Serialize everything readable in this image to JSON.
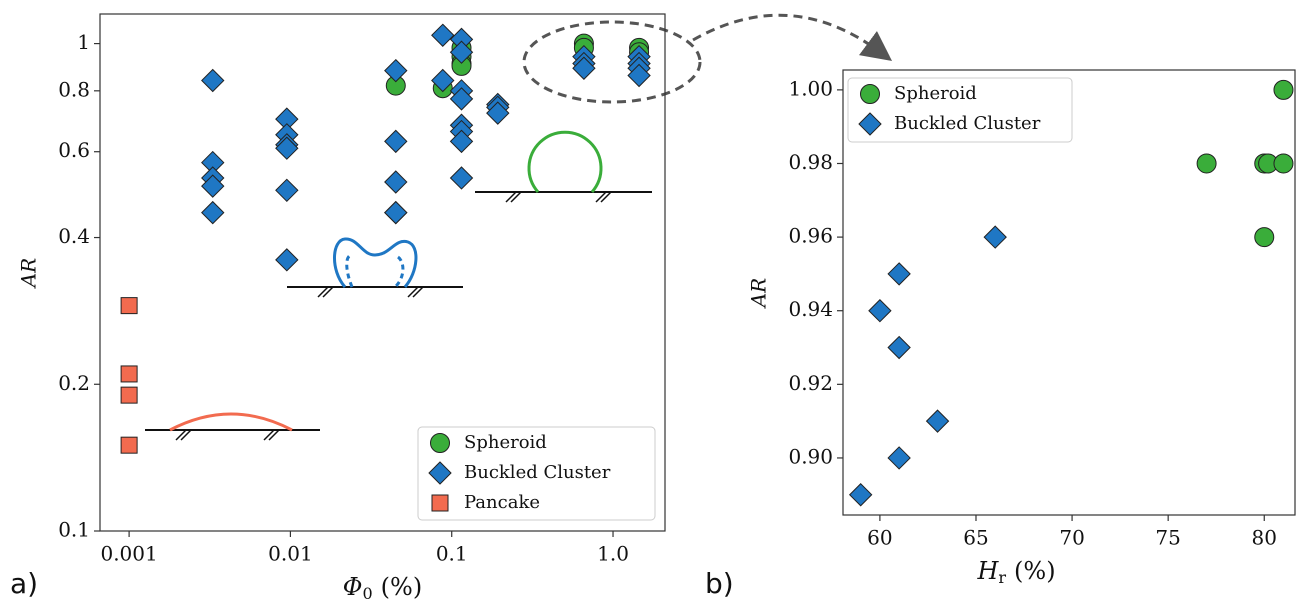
{
  "chart_data": [
    {
      "type": "scatter",
      "panel": "a)",
      "xscale": "log",
      "yscale": "log",
      "x_label": {
        "symbol": "Φ",
        "subscript": "0",
        "unit": "(%)"
      },
      "y_label": "AR",
      "xlim": [
        0.00066,
        2.1
      ],
      "ylim": [
        0.1,
        1.15
      ],
      "xticks": [
        0.001,
        0.01,
        0.1,
        {
          "value": 1,
          "label": "1.0"
        }
      ],
      "yticks": [
        0.1,
        0.2,
        0.4,
        0.6,
        0.8,
        1
      ],
      "legend": "lower right",
      "series": [
        {
          "name": "Spheroid",
          "color": "#3aad3a",
          "marker": "circle",
          "x": [
            0.045,
            0.088,
            0.115,
            0.115,
            0.115,
            0.115,
            0.66,
            0.66,
            1.45,
            1.45
          ],
          "values": [
            0.82,
            0.81,
            0.98,
            0.94,
            0.91,
            0.9,
            1.0,
            0.98,
            0.98,
            0.96
          ]
        },
        {
          "name": "Buckled Cluster",
          "color": "#1f77c4",
          "marker": "diamond",
          "x": [
            0.0033,
            0.0033,
            0.0033,
            0.0033,
            0.0033,
            0.0095,
            0.0095,
            0.0095,
            0.0095,
            0.0095,
            0.0095,
            0.045,
            0.045,
            0.045,
            0.045,
            0.045,
            0.088,
            0.088,
            0.115,
            0.115,
            0.115,
            0.115,
            0.115,
            0.115,
            0.115,
            0.115,
            0.193,
            0.193,
            0.193,
            0.66,
            0.66,
            0.66,
            1.45,
            1.45,
            1.45,
            1.45
          ],
          "values": [
            0.84,
            0.57,
            0.53,
            0.51,
            0.45,
            0.7,
            0.65,
            0.62,
            0.61,
            0.5,
            0.36,
            0.88,
            0.63,
            0.52,
            0.45,
            0.45,
            1.04,
            0.84,
            1.02,
            0.96,
            0.8,
            0.77,
            0.68,
            0.66,
            0.63,
            0.53,
            0.75,
            0.74,
            0.72,
            0.94,
            0.91,
            0.89,
            0.94,
            0.91,
            0.89,
            0.86
          ]
        },
        {
          "name": "Pancake",
          "color": "#f26b4f",
          "marker": "square",
          "x": [
            0.001,
            0.001,
            0.001,
            0.001
          ],
          "values": [
            0.29,
            0.21,
            0.19,
            0.15
          ]
        }
      ]
    },
    {
      "type": "scatter",
      "panel": "b)",
      "xscale": "linear",
      "yscale": "linear",
      "x_label": {
        "symbol": "H",
        "subscript": "r",
        "unit": "(%)"
      },
      "y_label": "AR",
      "xlim": [
        58.08,
        81.6
      ],
      "ylim": [
        0.8845,
        1.0054
      ],
      "xticks": [
        60,
        65,
        70,
        75,
        80
      ],
      "yticks": [
        {
          "value": 0.9,
          "label": "0.90"
        },
        {
          "value": 0.92,
          "label": "0.92"
        },
        {
          "value": 0.94,
          "label": "0.94"
        },
        {
          "value": 0.96,
          "label": "0.96"
        },
        {
          "value": 0.98,
          "label": "0.98"
        },
        {
          "value": 1.0,
          "label": "1.00"
        }
      ],
      "legend": "upper left",
      "series": [
        {
          "name": "Spheroid",
          "color": "#3aad3a",
          "marker": "circle",
          "x": [
            81,
            77,
            80,
            80.2,
            81,
            80
          ],
          "values": [
            1.0,
            0.98,
            0.98,
            0.98,
            0.98,
            0.96
          ]
        },
        {
          "name": "Buckled Cluster",
          "color": "#1f77c4",
          "marker": "diamond",
          "x": [
            59,
            60,
            61,
            61,
            61,
            63,
            66
          ],
          "values": [
            0.89,
            0.94,
            0.95,
            0.93,
            0.9,
            0.91,
            0.96
          ]
        }
      ]
    }
  ]
}
